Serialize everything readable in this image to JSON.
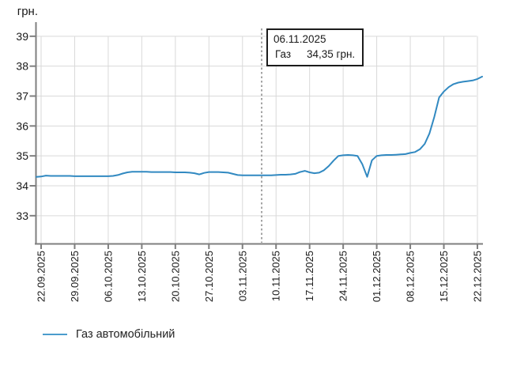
{
  "page": {
    "background": "#ffffff"
  },
  "tooltip": {
    "date": "06.11.2025",
    "series": "Газ",
    "value": "34,35 грн."
  },
  "legend": {
    "items": [
      {
        "label": "Газ автомобільний",
        "color": "#4b9ccd"
      }
    ]
  },
  "chart_data": {
    "type": "line",
    "title": "",
    "xlabel": "",
    "ylabel": "грн.",
    "y_ticks": [
      33,
      34,
      35,
      36,
      37,
      38,
      39
    ],
    "ylim": [
      32.05,
      39.5
    ],
    "grid": true,
    "legend_position": "bottom-left",
    "x_tick_labels": [
      "22.09.2025",
      "29.09.2025",
      "06.10.2025",
      "13.10.2025",
      "20.10.2025",
      "27.10.2025",
      "03.11.2025",
      "10.11.2025",
      "17.11.2025",
      "24.11.2025",
      "01.12.2025",
      "08.12.2025",
      "15.12.2025",
      "22.12.2025"
    ],
    "cursor": {
      "date_label": "06.11.2025",
      "day_index": 46,
      "value": 34.35
    },
    "colors": {
      "grid": "#d9d9d9",
      "axis": "#7f7f7f",
      "cursor": "#9b9b9b",
      "text": "#1a1a1a"
    },
    "series": [
      {
        "name": "Газ автомобільний",
        "unit": "грн.",
        "color": "#3189c1",
        "x_day0_date": "22.09.2025",
        "points": [
          [
            -1,
            34.3
          ],
          [
            0,
            34.31
          ],
          [
            1,
            34.34
          ],
          [
            2,
            34.33
          ],
          [
            3,
            34.33
          ],
          [
            4,
            34.33
          ],
          [
            5,
            34.33
          ],
          [
            6,
            34.33
          ],
          [
            7,
            34.32
          ],
          [
            8,
            34.32
          ],
          [
            9,
            34.32
          ],
          [
            10,
            34.32
          ],
          [
            11,
            34.32
          ],
          [
            12,
            34.32
          ],
          [
            13,
            34.32
          ],
          [
            14,
            34.32
          ],
          [
            15,
            34.33
          ],
          [
            16,
            34.36
          ],
          [
            17,
            34.41
          ],
          [
            18,
            34.45
          ],
          [
            19,
            34.47
          ],
          [
            20,
            34.47
          ],
          [
            21,
            34.47
          ],
          [
            22,
            34.47
          ],
          [
            23,
            34.46
          ],
          [
            24,
            34.46
          ],
          [
            25,
            34.46
          ],
          [
            26,
            34.46
          ],
          [
            27,
            34.46
          ],
          [
            28,
            34.45
          ],
          [
            29,
            34.45
          ],
          [
            30,
            34.45
          ],
          [
            31,
            34.44
          ],
          [
            32,
            34.42
          ],
          [
            33,
            34.38
          ],
          [
            34,
            34.43
          ],
          [
            35,
            34.46
          ],
          [
            36,
            34.46
          ],
          [
            37,
            34.46
          ],
          [
            38,
            34.45
          ],
          [
            39,
            34.44
          ],
          [
            40,
            34.4
          ],
          [
            41,
            34.36
          ],
          [
            42,
            34.35
          ],
          [
            43,
            34.35
          ],
          [
            44,
            34.35
          ],
          [
            45,
            34.35
          ],
          [
            46,
            34.35
          ],
          [
            47,
            34.35
          ],
          [
            48,
            34.35
          ],
          [
            49,
            34.36
          ],
          [
            50,
            34.37
          ],
          [
            51,
            34.37
          ],
          [
            52,
            34.38
          ],
          [
            53,
            34.4
          ],
          [
            54,
            34.46
          ],
          [
            55,
            34.5
          ],
          [
            56,
            34.45
          ],
          [
            57,
            34.42
          ],
          [
            58,
            34.44
          ],
          [
            59,
            34.52
          ],
          [
            60,
            34.66
          ],
          [
            61,
            34.84
          ],
          [
            62,
            35.0
          ],
          [
            63,
            35.02
          ],
          [
            64,
            35.03
          ],
          [
            65,
            35.02
          ],
          [
            66,
            35.0
          ],
          [
            67,
            34.72
          ],
          [
            68,
            34.3
          ],
          [
            69,
            34.85
          ],
          [
            70,
            35.0
          ],
          [
            71,
            35.02
          ],
          [
            72,
            35.03
          ],
          [
            73,
            35.03
          ],
          [
            74,
            35.04
          ],
          [
            75,
            35.05
          ],
          [
            76,
            35.06
          ],
          [
            77,
            35.1
          ],
          [
            78,
            35.13
          ],
          [
            79,
            35.22
          ],
          [
            80,
            35.4
          ],
          [
            81,
            35.75
          ],
          [
            82,
            36.3
          ],
          [
            83,
            36.95
          ],
          [
            84,
            37.15
          ],
          [
            85,
            37.3
          ],
          [
            86,
            37.4
          ],
          [
            87,
            37.45
          ],
          [
            88,
            37.48
          ],
          [
            89,
            37.5
          ],
          [
            90,
            37.52
          ],
          [
            91,
            37.57
          ],
          [
            92,
            37.65
          ]
        ]
      }
    ]
  }
}
